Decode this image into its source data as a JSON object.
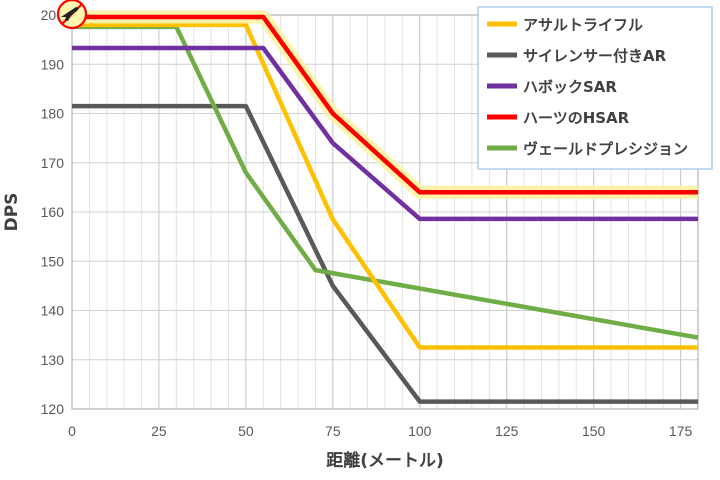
{
  "chart_data": {
    "type": "line",
    "title": "",
    "xlabel": "距離(メートル)",
    "ylabel": "DPS",
    "xlim": [
      0,
      180
    ],
    "ylim": [
      120,
      200
    ],
    "x_ticks": [
      "0",
      "25",
      "50",
      "75",
      "100",
      "125",
      "150",
      "175"
    ],
    "y_ticks": [
      "120",
      "130",
      "140",
      "150",
      "160",
      "170",
      "180",
      "190",
      "200"
    ],
    "grid": true,
    "legend_position": "top-right",
    "series": [
      {
        "name": "アサルトライフル",
        "color": "#FFC000",
        "x": [
          0,
          50,
          75,
          100,
          180
        ],
        "y": [
          198,
          198,
          158.5,
          132.5,
          132.5
        ]
      },
      {
        "name": "サイレンサー付きAR",
        "color": "#595959",
        "x": [
          0,
          50,
          75,
          100,
          180
        ],
        "y": [
          181.5,
          181.5,
          145,
          121.5,
          121.5
        ]
      },
      {
        "name": "ハボックSAR",
        "color": "#7030A0",
        "x": [
          0,
          55,
          75,
          100,
          180
        ],
        "y": [
          193.3,
          193.3,
          174,
          158.6,
          158.6
        ]
      },
      {
        "name": "ハーツのHSAR",
        "color": "#FF0000",
        "x": [
          0,
          55,
          75,
          100,
          180
        ],
        "y": [
          199.6,
          199.6,
          180,
          164,
          164
        ]
      },
      {
        "name": "ヴェールドプレシジョン",
        "color": "#70AD47",
        "x": [
          0,
          30,
          50,
          70,
          180
        ],
        "y": [
          197.6,
          197.6,
          168,
          148.2,
          134.5
        ]
      }
    ]
  }
}
